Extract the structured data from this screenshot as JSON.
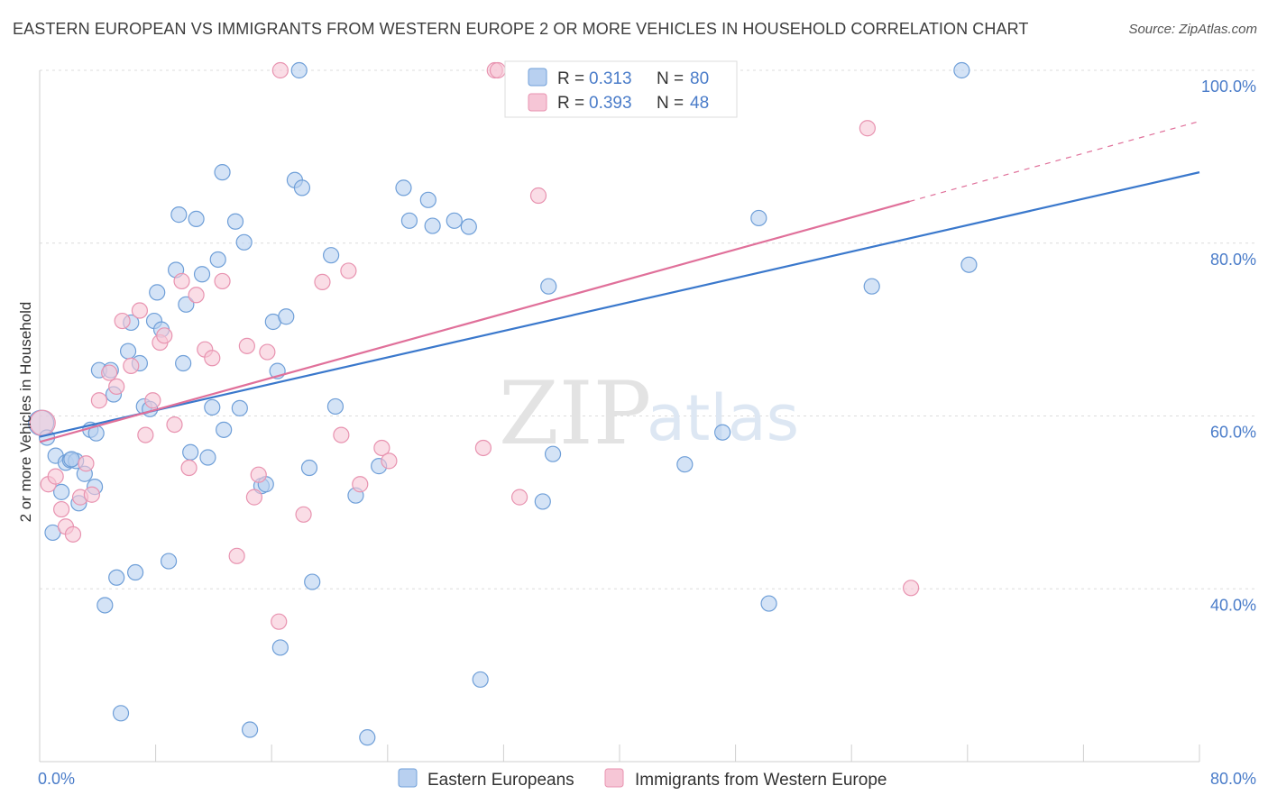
{
  "header": {
    "title": "EASTERN EUROPEAN VS IMMIGRANTS FROM WESTERN EUROPE 2 OR MORE VEHICLES IN HOUSEHOLD CORRELATION CHART",
    "source": "Source: ZipAtlas.com"
  },
  "watermark": {
    "zip": "ZIP",
    "atlas": "atlas"
  },
  "colors": {
    "blue_fill": "#b8d0f0",
    "blue_stroke": "#6f9fd8",
    "blue_line": "#3a78cc",
    "pink_fill": "#f6c6d6",
    "pink_stroke": "#e893b0",
    "pink_line": "#e0709a",
    "tick_text": "#4a7cc9"
  },
  "legend": {
    "r_label": "R =",
    "n_label": "N =",
    "series": [
      {
        "r": "0.313",
        "n": "80"
      },
      {
        "r": "0.393",
        "n": "48"
      }
    ]
  },
  "bottom_legend": [
    "Eastern Europeans",
    "Immigrants from Western Europe"
  ],
  "chart_data": {
    "type": "scatter",
    "title": "EASTERN EUROPEAN VS IMMIGRANTS FROM WESTERN EUROPE 2 OR MORE VEHICLES IN HOUSEHOLD CORRELATION CHART",
    "xlabel": "",
    "ylabel": "2 or more Vehicles in Household",
    "xlim": [
      0,
      80
    ],
    "ylim": [
      20,
      100
    ],
    "x_tick_labels": [
      "0.0%",
      "80.0%"
    ],
    "y_ticks": [
      40,
      60,
      80,
      100
    ],
    "y_tick_labels": [
      "40.0%",
      "60.0%",
      "80.0%",
      "100.0%"
    ],
    "grid": true,
    "legend_position": "top-center",
    "series": [
      {
        "name": "Eastern Europeans",
        "r": 0.313,
        "n": 80,
        "trend": {
          "x": [
            0,
            80
          ],
          "y": [
            57.6,
            88.2
          ]
        },
        "points": [
          [
            0.1,
            59.2
          ],
          [
            0.5,
            57.5
          ],
          [
            0.9,
            46.5
          ],
          [
            1.1,
            55.4
          ],
          [
            1.5,
            51.2
          ],
          [
            1.8,
            54.6
          ],
          [
            2.1,
            54.9
          ],
          [
            2.5,
            54.8
          ],
          [
            2.7,
            49.9
          ],
          [
            3.1,
            53.3
          ],
          [
            3.5,
            58.4
          ],
          [
            3.8,
            51.8
          ],
          [
            4.1,
            65.3
          ],
          [
            4.5,
            38.1
          ],
          [
            4.9,
            65.3
          ],
          [
            5.1,
            62.5
          ],
          [
            5.3,
            41.3
          ],
          [
            5.6,
            25.6
          ],
          [
            6.1,
            67.5
          ],
          [
            6.3,
            70.8
          ],
          [
            6.6,
            41.9
          ],
          [
            6.9,
            66.1
          ],
          [
            7.2,
            61.1
          ],
          [
            7.6,
            60.8
          ],
          [
            7.9,
            71.0
          ],
          [
            8.1,
            74.3
          ],
          [
            8.4,
            70.0
          ],
          [
            8.9,
            43.2
          ],
          [
            9.4,
            76.9
          ],
          [
            9.6,
            83.3
          ],
          [
            9.9,
            66.1
          ],
          [
            10.1,
            72.9
          ],
          [
            10.4,
            55.8
          ],
          [
            10.8,
            82.8
          ],
          [
            11.2,
            76.4
          ],
          [
            11.6,
            55.2
          ],
          [
            11.9,
            61.0
          ],
          [
            12.3,
            78.1
          ],
          [
            12.6,
            88.2
          ],
          [
            12.7,
            58.4
          ],
          [
            13.5,
            82.5
          ],
          [
            13.8,
            60.9
          ],
          [
            14.1,
            80.1
          ],
          [
            14.5,
            23.7
          ],
          [
            15.3,
            51.9
          ],
          [
            15.6,
            52.1
          ],
          [
            16.1,
            70.9
          ],
          [
            16.4,
            65.2
          ],
          [
            16.6,
            33.2
          ],
          [
            17.0,
            71.5
          ],
          [
            17.6,
            87.3
          ],
          [
            17.9,
            100.0
          ],
          [
            18.1,
            86.4
          ],
          [
            18.6,
            54.0
          ],
          [
            18.8,
            40.8
          ],
          [
            20.1,
            78.6
          ],
          [
            20.4,
            61.1
          ],
          [
            21.8,
            50.8
          ],
          [
            22.6,
            22.8
          ],
          [
            23.4,
            54.2
          ],
          [
            25.1,
            86.4
          ],
          [
            25.5,
            82.6
          ],
          [
            26.8,
            85.0
          ],
          [
            27.1,
            82.0
          ],
          [
            28.6,
            82.6
          ],
          [
            29.6,
            81.9
          ],
          [
            30.4,
            29.5
          ],
          [
            34.7,
            50.1
          ],
          [
            35.1,
            75.0
          ],
          [
            35.4,
            55.6
          ],
          [
            40.3,
            100.0
          ],
          [
            44.5,
            54.4
          ],
          [
            47.1,
            58.1
          ],
          [
            49.6,
            82.9
          ],
          [
            50.3,
            38.3
          ],
          [
            57.4,
            75.0
          ],
          [
            63.6,
            100.0
          ],
          [
            64.1,
            77.5
          ],
          [
            3.9,
            58.0
          ],
          [
            2.2,
            55.0
          ]
        ]
      },
      {
        "name": "Immigrants from Western Europe",
        "r": 0.393,
        "n": 48,
        "trend": {
          "x": [
            0,
            80
          ],
          "y": [
            57.0,
            94.1
          ]
        },
        "points": [
          [
            0.2,
            59.2
          ],
          [
            0.6,
            52.1
          ],
          [
            1.1,
            53.0
          ],
          [
            1.5,
            49.2
          ],
          [
            1.8,
            47.2
          ],
          [
            2.3,
            46.3
          ],
          [
            2.8,
            50.6
          ],
          [
            3.2,
            54.5
          ],
          [
            3.6,
            50.9
          ],
          [
            4.1,
            61.8
          ],
          [
            4.8,
            65.0
          ],
          [
            5.3,
            63.4
          ],
          [
            5.7,
            71.0
          ],
          [
            6.3,
            65.8
          ],
          [
            6.9,
            72.2
          ],
          [
            7.3,
            57.8
          ],
          [
            7.8,
            61.8
          ],
          [
            8.3,
            68.5
          ],
          [
            8.6,
            69.3
          ],
          [
            9.3,
            59.0
          ],
          [
            9.8,
            75.6
          ],
          [
            10.3,
            54.0
          ],
          [
            10.8,
            74.0
          ],
          [
            11.4,
            67.7
          ],
          [
            11.9,
            66.7
          ],
          [
            12.6,
            75.6
          ],
          [
            13.6,
            43.8
          ],
          [
            14.3,
            68.1
          ],
          [
            14.8,
            50.6
          ],
          [
            15.1,
            53.2
          ],
          [
            15.7,
            67.4
          ],
          [
            16.5,
            36.2
          ],
          [
            16.6,
            100.0
          ],
          [
            18.2,
            48.6
          ],
          [
            19.5,
            75.5
          ],
          [
            20.8,
            57.8
          ],
          [
            21.3,
            76.8
          ],
          [
            22.1,
            52.1
          ],
          [
            23.6,
            56.3
          ],
          [
            24.1,
            54.8
          ],
          [
            30.6,
            56.3
          ],
          [
            31.4,
            100.0
          ],
          [
            31.6,
            100.0
          ],
          [
            33.1,
            50.6
          ],
          [
            34.4,
            85.5
          ],
          [
            47.4,
            100.0
          ],
          [
            57.1,
            93.3
          ],
          [
            60.1,
            40.1
          ]
        ]
      }
    ]
  }
}
